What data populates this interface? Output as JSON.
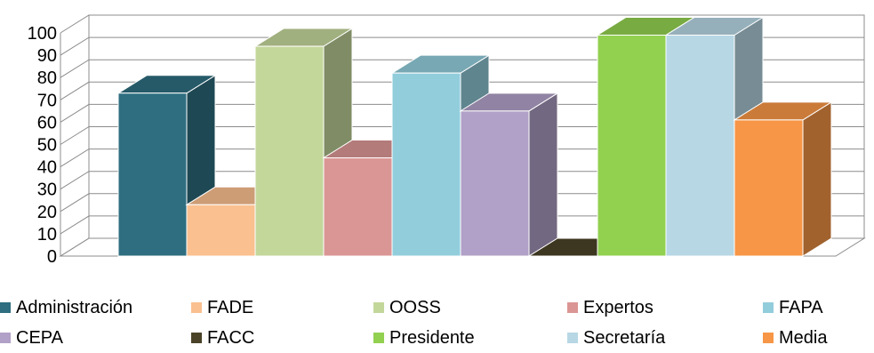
{
  "chart_data": {
    "type": "bar",
    "style": "3d-columns",
    "categories": [
      "Administración",
      "FADE",
      "OOSS",
      "Expertos",
      "FAPA",
      "CEPA",
      "FACC",
      "Presidente",
      "Secretaría",
      "Media"
    ],
    "values": [
      73,
      23,
      94,
      44,
      82,
      65,
      0,
      99,
      99,
      61
    ],
    "colors": [
      "#2E6E80",
      "#FAC090",
      "#C4D79B",
      "#DA9694",
      "#92CDDC",
      "#B1A0C7",
      "#4A4328",
      "#92D050",
      "#B7D7E4",
      "#F79646"
    ],
    "yticks": [
      "0",
      "10",
      "20",
      "30",
      "40",
      "50",
      "60",
      "70",
      "80",
      "90",
      "100"
    ],
    "ylim": [
      0,
      100
    ],
    "grid": true,
    "legend_position": "bottom",
    "title": "",
    "xlabel": "",
    "ylabel": ""
  }
}
